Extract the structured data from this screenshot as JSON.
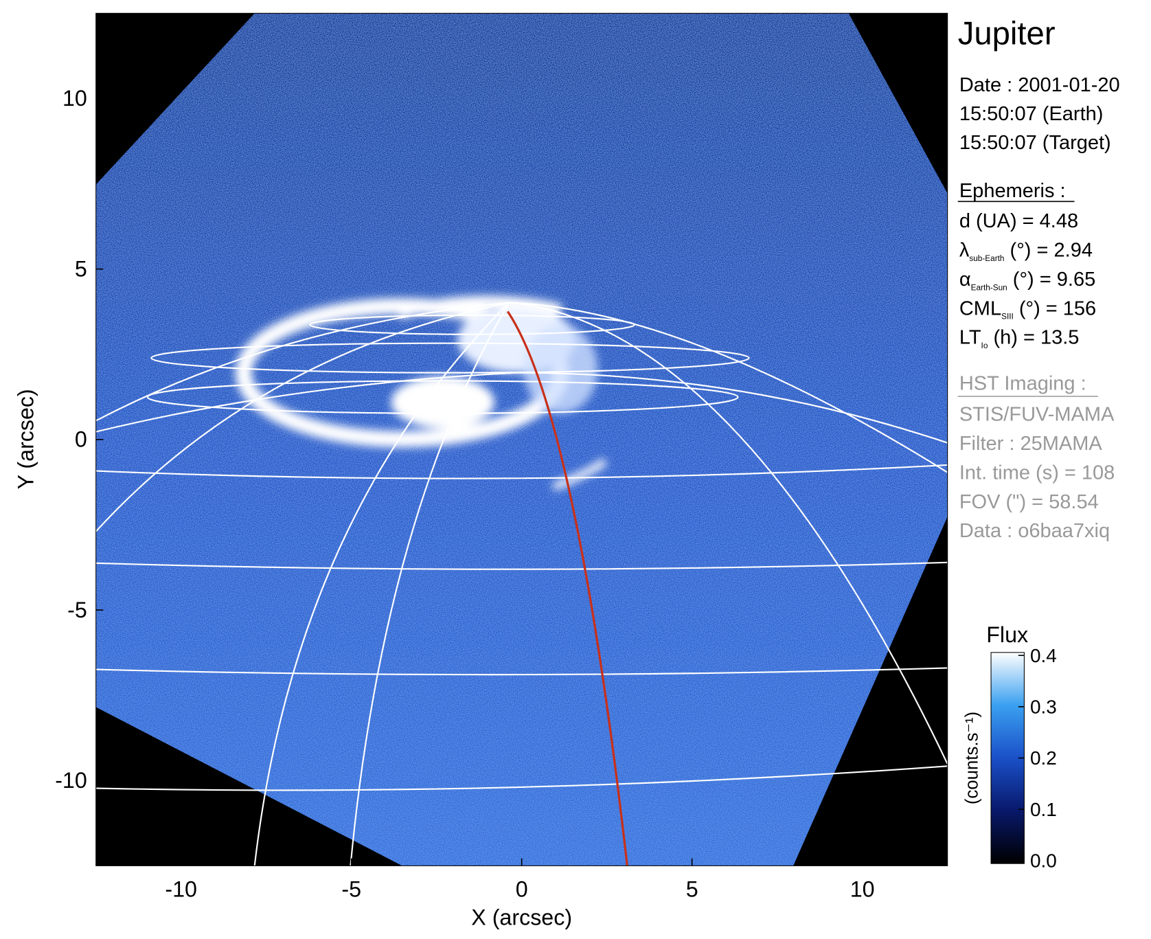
{
  "chart_data": {
    "type": "image",
    "xlabel": "X (arcsec)",
    "ylabel": "Y (arcsec)",
    "xlim": [
      -12.5,
      12.5
    ],
    "ylim": [
      -12.5,
      12.5
    ],
    "xticks": [
      -10,
      -5,
      0,
      5,
      10
    ],
    "yticks": [
      -10,
      -5,
      0,
      5,
      10
    ],
    "colorbar": {
      "title": "Flux",
      "unit": "(counts.s⁻¹)",
      "lim": [
        0,
        0.4
      ],
      "ticks": [
        {
          "value": 0,
          "label": "0.0"
        },
        0.1,
        0.2,
        0.3,
        0.4
      ]
    },
    "info": {
      "title": "Jupiter",
      "dates": [
        "Date : 2001-01-20",
        "15:50:07 (Earth)",
        "15:50:07 (Target)"
      ],
      "ephemeris_heading": "Ephemeris :",
      "ephemeris": [
        {
          "symbol": "d (UA)    = 4.48"
        },
        {
          "symbol": "λ",
          "sub": "sub-Earth",
          "text": " (°) = 2.94"
        },
        {
          "symbol": "α",
          "sub": "Earth-Sun",
          "text": " (°) = 9.65"
        },
        {
          "symbol": "CML",
          "sub": "SIII",
          "text": " (°) = 156"
        },
        {
          "symbol": "LT",
          "sub": "Io",
          "text": " (h) = 13.5"
        }
      ],
      "imaging_heading": "HST Imaging :",
      "imaging": [
        "STIS/FUV-MAMA",
        "Filter : 25MAMA",
        "Int. time (s) = 108",
        "FOV (\") = 58.54",
        "Data : o6baa7xiq"
      ]
    }
  }
}
